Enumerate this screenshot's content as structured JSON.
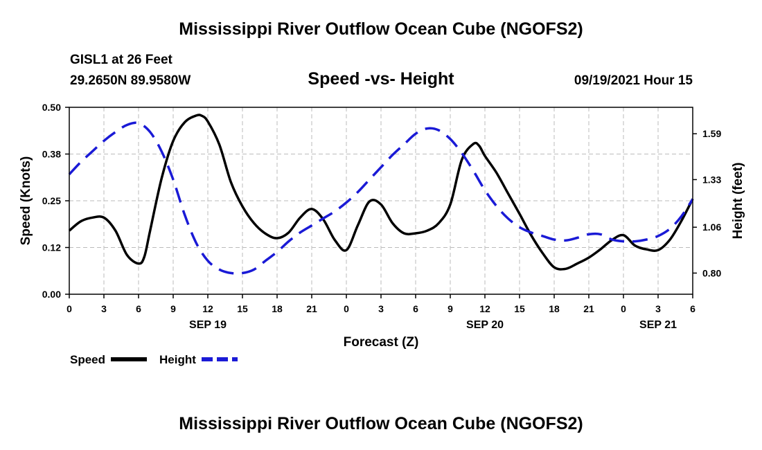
{
  "header": {
    "title": "Mississippi River Outflow Ocean Cube (NGOFS2)",
    "station": "GISL1 at 26 Feet",
    "coords": "29.2650N  89.9580W",
    "subtitle": "Speed -vs- Height",
    "datetime": "09/19/2021 Hour 15",
    "footer_title": "Mississippi River Outflow Ocean Cube (NGOFS2)"
  },
  "chart_data": {
    "type": "line",
    "xlabel": "Forecast (Z)",
    "ylabel_left": "Speed (Knots)",
    "ylabel_right": "Height (feet)",
    "x_hours_range": [
      0,
      54
    ],
    "x_ticks": [
      {
        "h": 0,
        "label": "0"
      },
      {
        "h": 3,
        "label": "3"
      },
      {
        "h": 6,
        "label": "6"
      },
      {
        "h": 9,
        "label": "9"
      },
      {
        "h": 12,
        "label": "12"
      },
      {
        "h": 15,
        "label": "15"
      },
      {
        "h": 18,
        "label": "18"
      },
      {
        "h": 21,
        "label": "21"
      },
      {
        "h": 24,
        "label": "0"
      },
      {
        "h": 27,
        "label": "3"
      },
      {
        "h": 30,
        "label": "6"
      },
      {
        "h": 33,
        "label": "9"
      },
      {
        "h": 36,
        "label": "12"
      },
      {
        "h": 39,
        "label": "15"
      },
      {
        "h": 42,
        "label": "18"
      },
      {
        "h": 45,
        "label": "21"
      },
      {
        "h": 48,
        "label": "0"
      },
      {
        "h": 51,
        "label": "3"
      },
      {
        "h": 54,
        "label": "6"
      }
    ],
    "date_labels": [
      {
        "h": 12,
        "label": "SEP 19"
      },
      {
        "h": 36,
        "label": "SEP 20"
      },
      {
        "h": 51,
        "label": "SEP 21"
      }
    ],
    "y_left": {
      "range": [
        0,
        0.5
      ],
      "ticks": [
        0,
        0.125,
        0.25,
        0.375,
        0.5
      ],
      "tick_labels": [
        "0.00",
        "0.12",
        "0.25",
        "0.38",
        "0.50"
      ]
    },
    "y_right": {
      "range": [
        0.68,
        1.74
      ],
      "ticks": [
        0.8,
        1.06,
        1.33,
        1.59
      ],
      "tick_labels": [
        "0.80",
        "1.06",
        "1.33",
        "1.59"
      ]
    },
    "grid": true,
    "series": [
      {
        "name": "Speed",
        "axis": "left",
        "color": "#000000",
        "dash": "solid",
        "hours": [
          0,
          1,
          2,
          3,
          4,
          5,
          6,
          6.5,
          7,
          8,
          9,
          10,
          11,
          11.5,
          12,
          13,
          14,
          15,
          16,
          17,
          18,
          19,
          20,
          21,
          22,
          23,
          24,
          25,
          26,
          27,
          28,
          29,
          30,
          31,
          32,
          33,
          34,
          35,
          35.5,
          36,
          37,
          38,
          39,
          40,
          41,
          42,
          43,
          44,
          45,
          46,
          47,
          48,
          49,
          50,
          51,
          52,
          53,
          54
        ],
        "values": [
          0.17,
          0.195,
          0.205,
          0.205,
          0.17,
          0.105,
          0.082,
          0.1,
          0.17,
          0.31,
          0.41,
          0.46,
          0.478,
          0.477,
          0.462,
          0.4,
          0.3,
          0.235,
          0.19,
          0.162,
          0.15,
          0.165,
          0.205,
          0.228,
          0.2,
          0.145,
          0.118,
          0.185,
          0.248,
          0.24,
          0.19,
          0.163,
          0.163,
          0.17,
          0.19,
          0.24,
          0.36,
          0.402,
          0.397,
          0.37,
          0.325,
          0.27,
          0.215,
          0.158,
          0.11,
          0.072,
          0.068,
          0.082,
          0.098,
          0.12,
          0.145,
          0.158,
          0.13,
          0.12,
          0.118,
          0.145,
          0.195,
          0.255
        ]
      },
      {
        "name": "Height",
        "axis": "right",
        "color": "#1a1ad6",
        "dash": "dashed",
        "hours": [
          0,
          1,
          2,
          3,
          4,
          5,
          6,
          7,
          8,
          9,
          10,
          11,
          12,
          13,
          14,
          15,
          16,
          17,
          18,
          19,
          20,
          21,
          22,
          23,
          24,
          25,
          26,
          27,
          28,
          29,
          30,
          31,
          32,
          33,
          34,
          35,
          36,
          37,
          38,
          39,
          40,
          41,
          42,
          43,
          44,
          45,
          46,
          47,
          48,
          49,
          50,
          51,
          52,
          53,
          54
        ],
        "values": [
          1.36,
          1.43,
          1.49,
          1.55,
          1.6,
          1.64,
          1.65,
          1.6,
          1.49,
          1.33,
          1.13,
          0.97,
          0.87,
          0.82,
          0.8,
          0.8,
          0.82,
          0.87,
          0.92,
          0.98,
          1.03,
          1.07,
          1.11,
          1.15,
          1.2,
          1.26,
          1.33,
          1.4,
          1.47,
          1.53,
          1.59,
          1.62,
          1.61,
          1.56,
          1.48,
          1.38,
          1.27,
          1.18,
          1.11,
          1.06,
          1.03,
          1.01,
          0.99,
          0.985,
          1.0,
          1.02,
          1.02,
          0.99,
          0.98,
          0.98,
          0.99,
          1.01,
          1.05,
          1.12,
          1.22
        ]
      }
    ],
    "legend": {
      "position": "bottom-left",
      "items": [
        {
          "label": "Speed",
          "color": "#000000",
          "dash": "solid"
        },
        {
          "label": "Height",
          "color": "#1a1ad6",
          "dash": "dashed"
        }
      ]
    }
  }
}
